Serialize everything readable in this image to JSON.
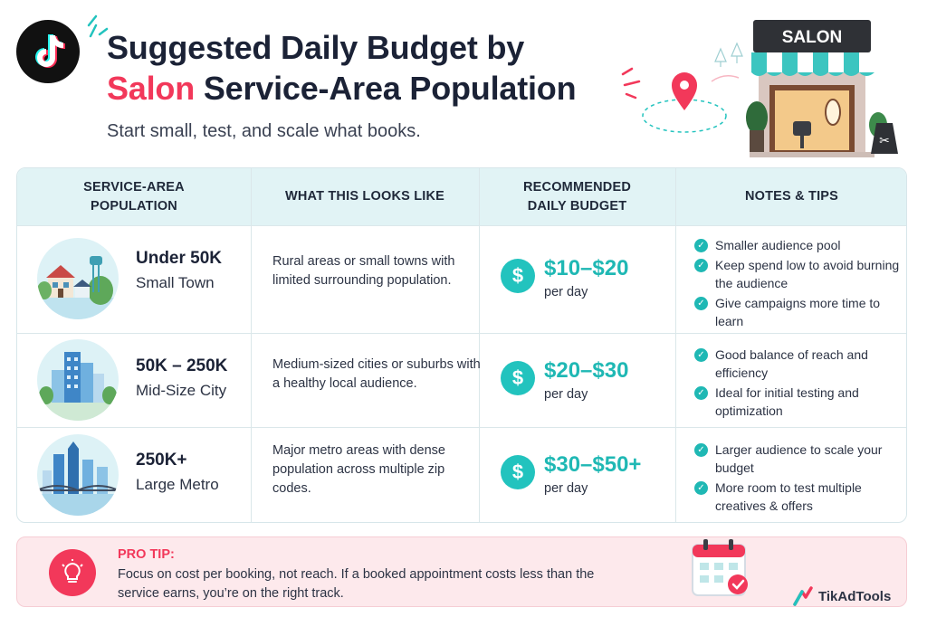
{
  "header": {
    "title_line1": "Suggested Daily Budget by",
    "title_accent": "Salon",
    "title_line2_rest": " Service-Area Population",
    "subtitle": "Start small, test, and scale what books.",
    "sign_text": "SALON"
  },
  "table": {
    "headers": {
      "population": "SERVICE-AREA\nPOPULATION",
      "looks_like": "WHAT THIS LOOKS LIKE",
      "budget": "RECOMMENDED\nDAILY BUDGET",
      "notes": "NOTES & TIPS"
    },
    "rows": [
      {
        "title": "Under 50K",
        "subtitle": "Small Town",
        "description": "Rural areas or small towns with limited surrounding population.",
        "price": "$10–$20",
        "per": "per day",
        "tips": [
          "Smaller audience pool",
          "Keep spend low to avoid burning the audience",
          "Give campaigns more time to learn"
        ]
      },
      {
        "title": "50K – 250K",
        "subtitle": "Mid-Size City",
        "description": "Medium-sized cities or suburbs with a healthy local audience.",
        "price": "$20–$30",
        "per": "per day",
        "tips": [
          "Good balance of reach and efficiency",
          "Ideal for initial testing and optimization"
        ]
      },
      {
        "title": "250K+",
        "subtitle": "Large Metro",
        "description": "Major metro areas with dense population across multiple zip codes.",
        "price": "$30–$50+",
        "per": "per day",
        "tips": [
          "Larger audience to scale your budget",
          "More room to test multiple creatives & offers"
        ]
      }
    ]
  },
  "pro_tip": {
    "label": "PRO TIP:",
    "text": "Focus on cost per booking, not reach. If a booked appointment costs less than the service earns, you’re on the right track."
  },
  "brand": {
    "name": "TikAdTools"
  },
  "icons": {
    "logo": "tiktok-logo-icon",
    "dollar": "dollar-icon",
    "check": "check-circle-icon",
    "bulb": "lightbulb-icon",
    "calendar": "calendar-icon",
    "pin": "location-pin-icon"
  },
  "colors": {
    "accent_pink": "#f2385a",
    "accent_teal": "#1fb8b4",
    "header_bg": "#e1f3f5",
    "tip_bg": "#fde9ec"
  }
}
